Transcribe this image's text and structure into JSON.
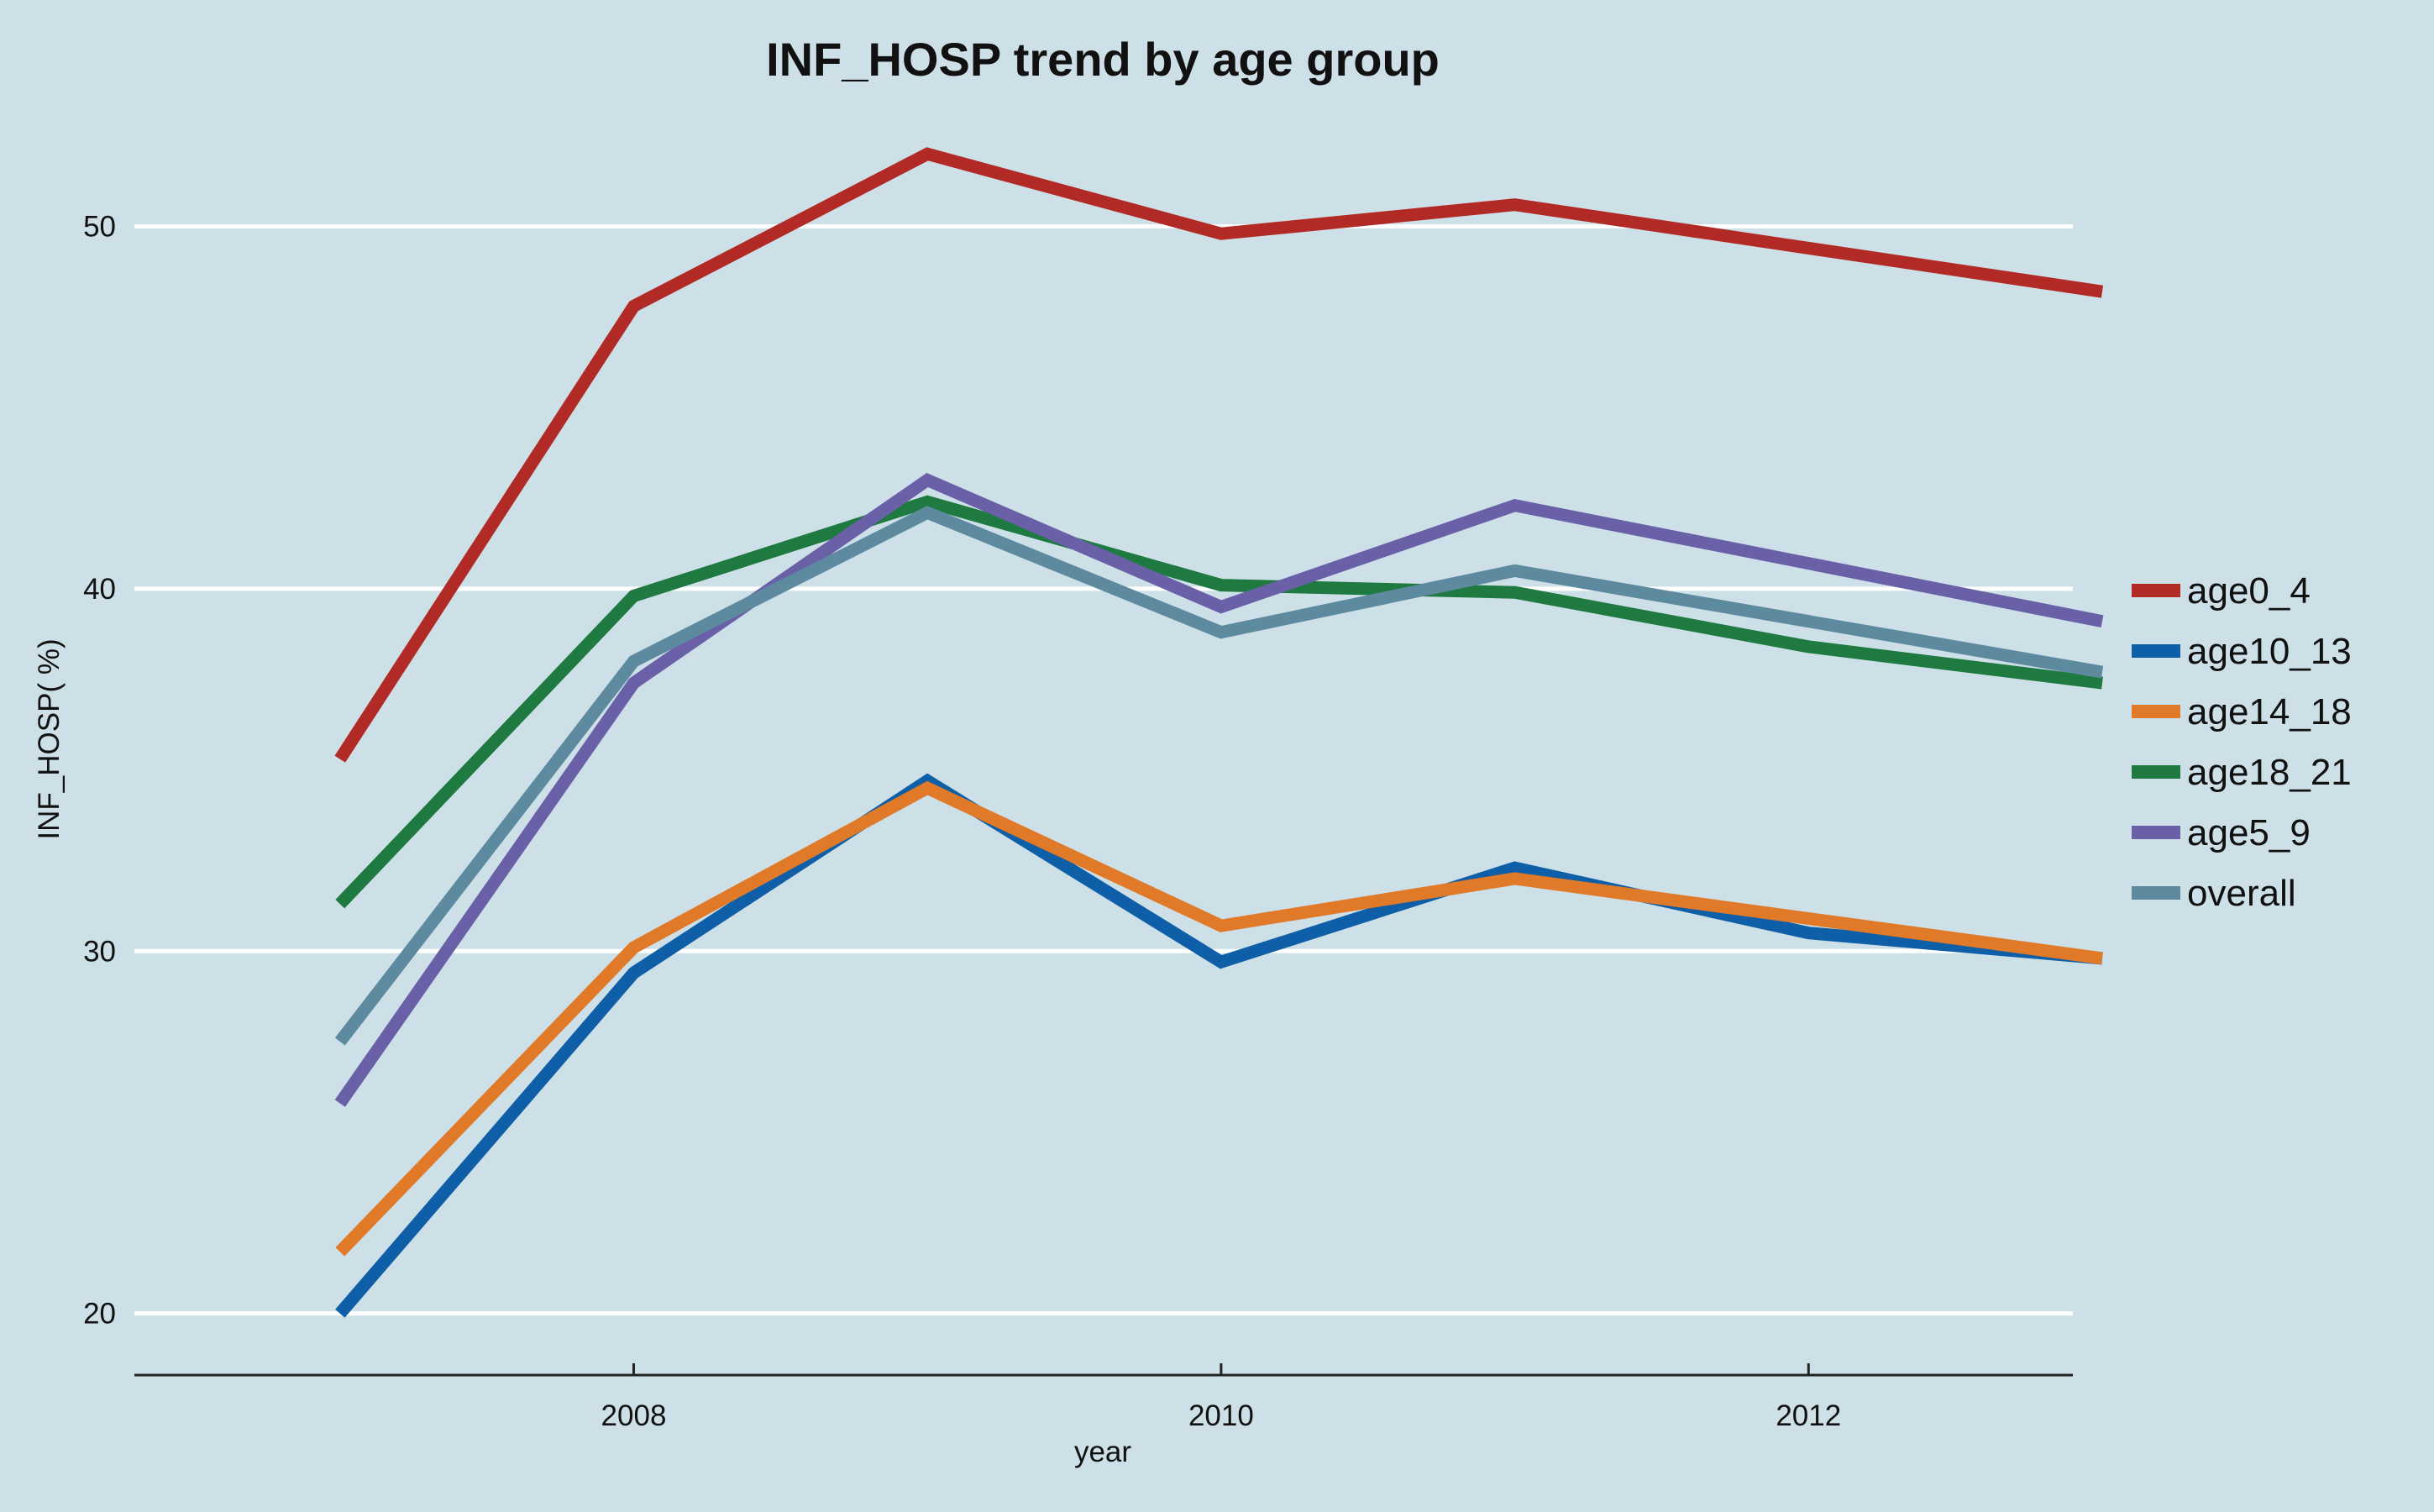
{
  "chart_data": {
    "type": "line",
    "title": "INF_HOSP trend by age group",
    "xlabel": "year",
    "ylabel": "INF_HOSP( %)",
    "x": [
      2007,
      2008,
      2009,
      2010,
      2011,
      2012,
      2013
    ],
    "xticks": [
      "2008",
      "2010",
      "2012"
    ],
    "yticks": [
      "20",
      "30",
      "40",
      "50"
    ],
    "xlim": [
      2006.3,
      2012.9
    ],
    "ylim": [
      18.3,
      54
    ],
    "grid": "horizontal",
    "legend_position": "right",
    "series": [
      {
        "name": "age0_4",
        "color": "#b22a25",
        "values": [
          35.3,
          47.8,
          52.0,
          49.8,
          50.6,
          49.4,
          48.2
        ]
      },
      {
        "name": "age10_13",
        "color": "#0f5ea8",
        "values": [
          20.0,
          29.4,
          34.7,
          29.7,
          32.3,
          30.5,
          29.8
        ]
      },
      {
        "name": "age14_18",
        "color": "#e07a28",
        "values": [
          21.7,
          30.1,
          34.5,
          30.7,
          32.0,
          30.9,
          29.8
        ]
      },
      {
        "name": "age18_21",
        "color": "#1e7a40",
        "values": [
          31.3,
          39.8,
          42.4,
          40.1,
          39.9,
          38.4,
          37.4
        ]
      },
      {
        "name": "age5_9",
        "color": "#6a60a8",
        "values": [
          25.8,
          37.4,
          43.0,
          39.5,
          42.3,
          40.7,
          39.1
        ]
      },
      {
        "name": "overall",
        "color": "#5e8aa0",
        "values": [
          27.5,
          38.0,
          42.1,
          38.8,
          40.5,
          39.1,
          37.7
        ]
      }
    ]
  }
}
